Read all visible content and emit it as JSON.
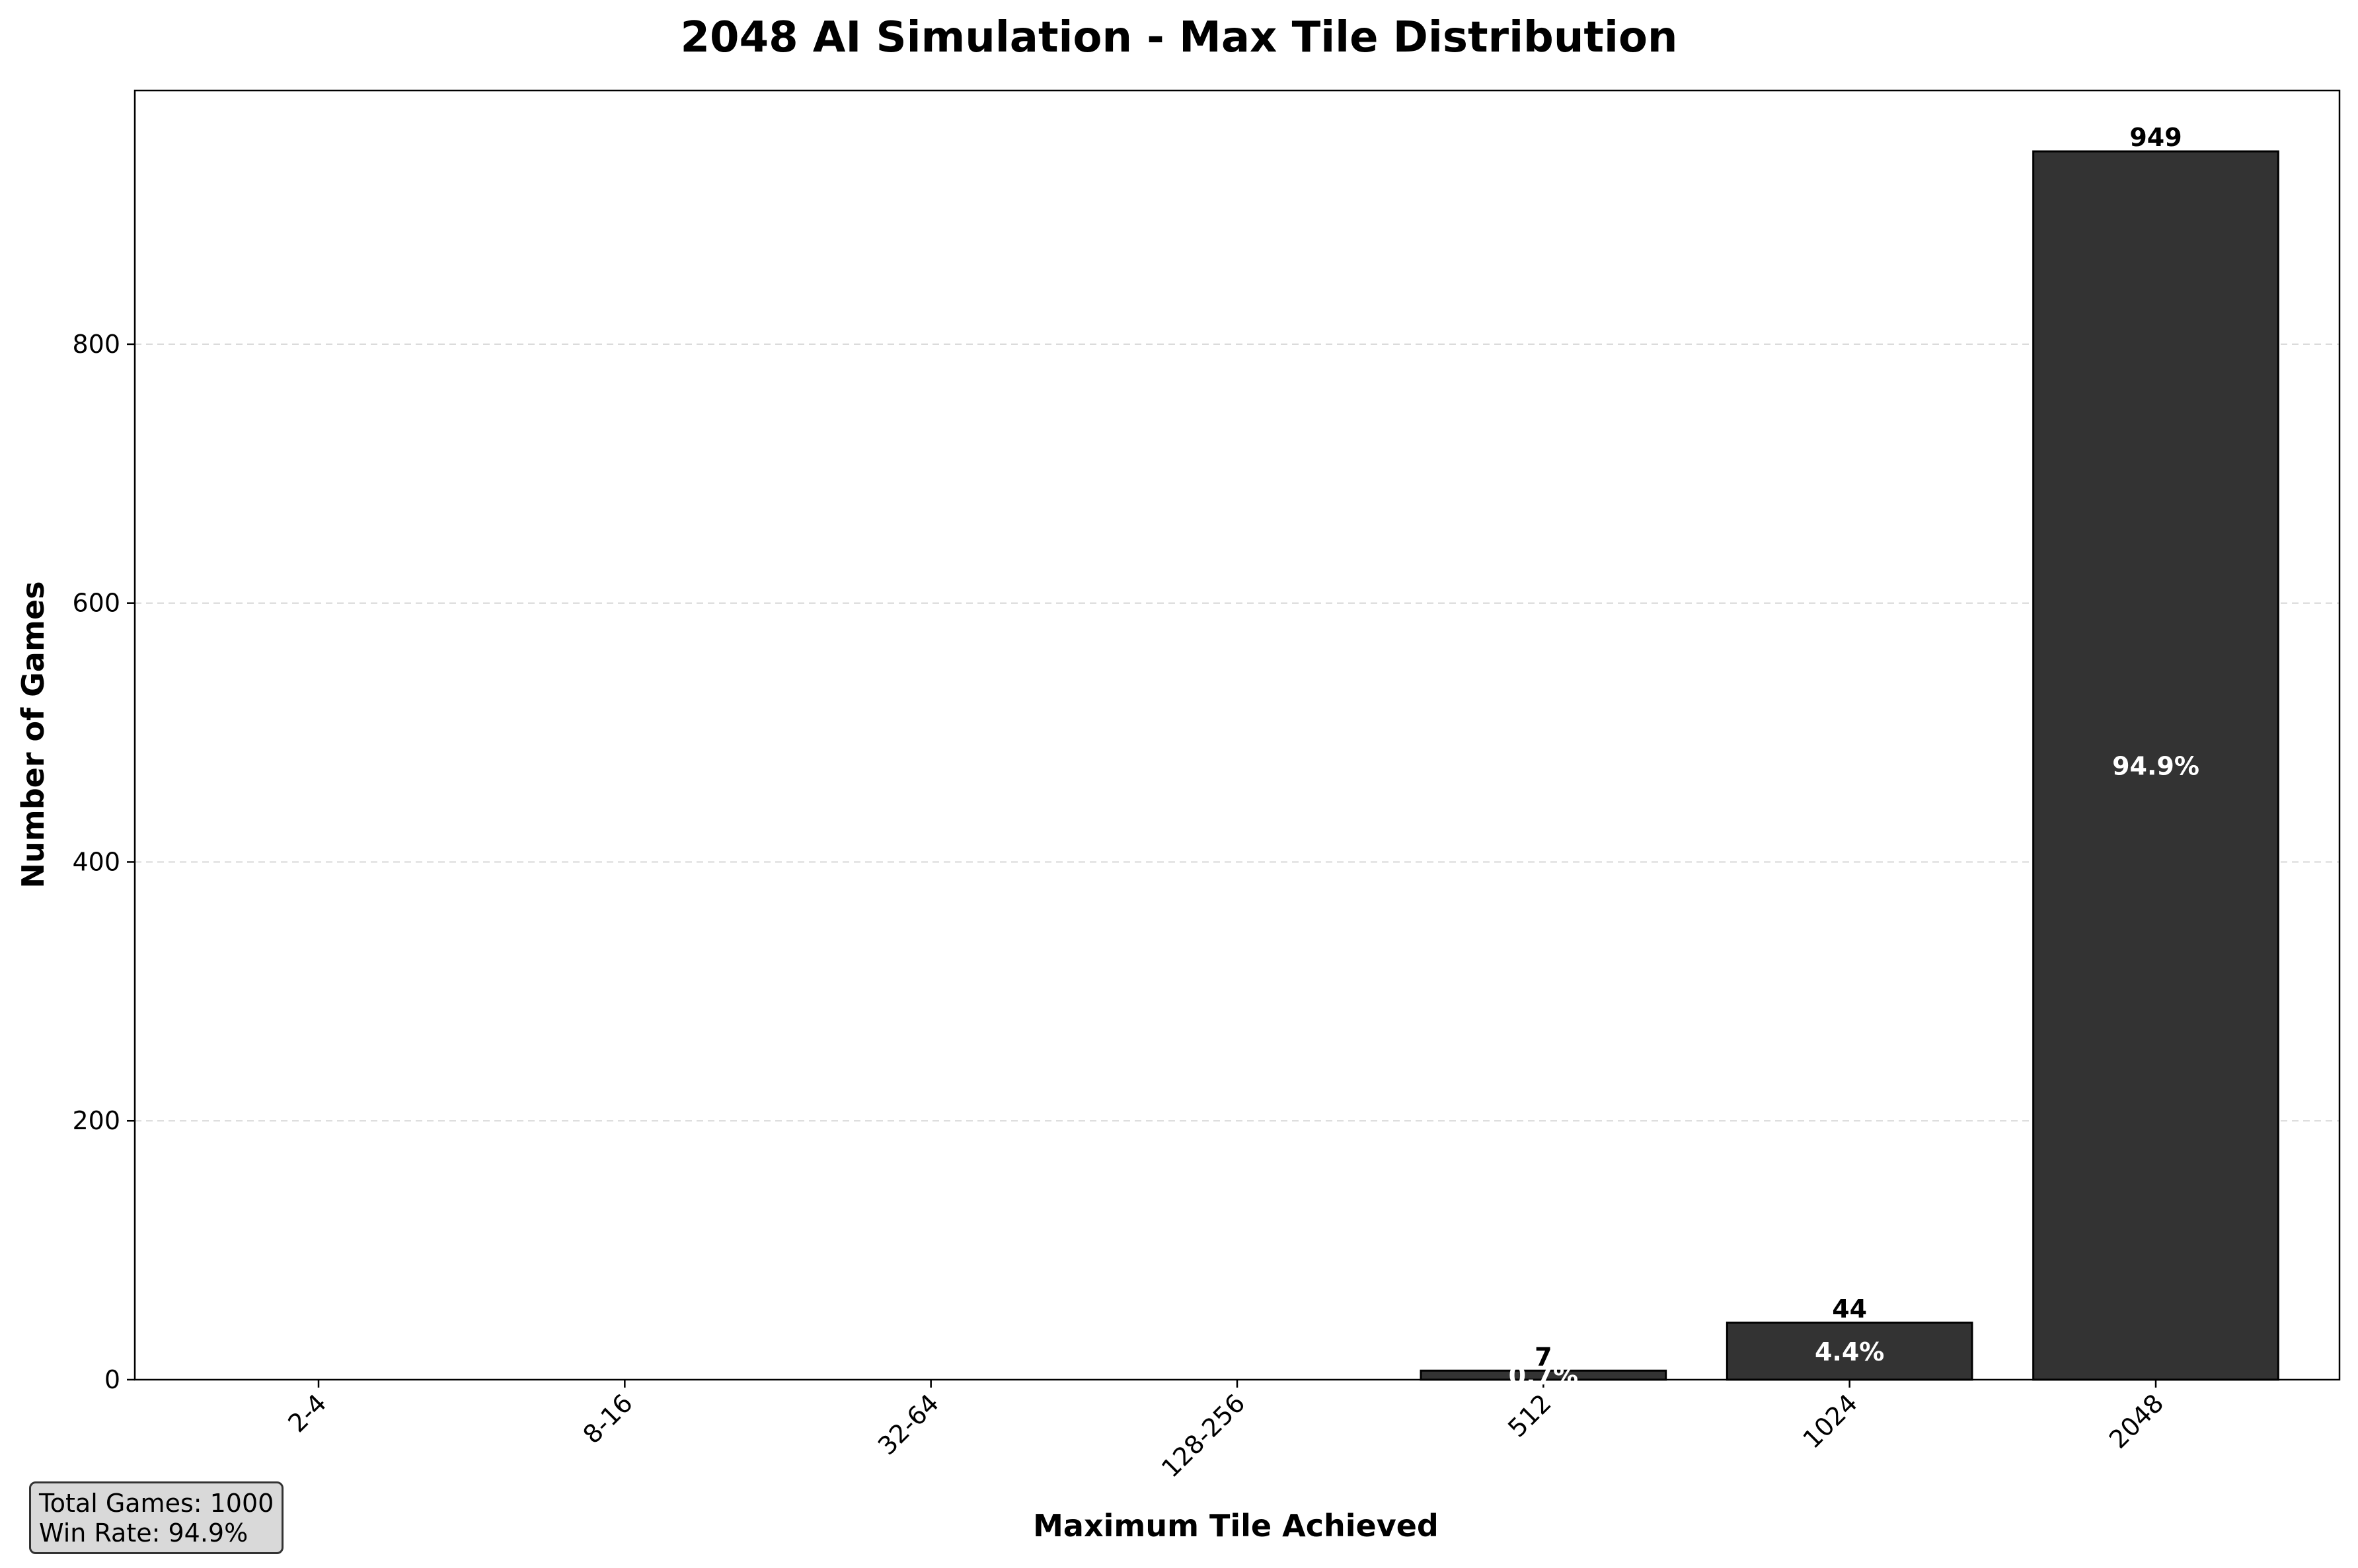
{
  "chart_data": {
    "type": "bar",
    "title": "2048 AI Simulation - Max Tile Distribution",
    "xlabel": "Maximum Tile Achieved",
    "ylabel": "Number of Games",
    "categories": [
      "2-4",
      "8-16",
      "32-64",
      "128-256",
      "512",
      "1024",
      "2048"
    ],
    "values": [
      0,
      0,
      0,
      0,
      7,
      44,
      949
    ],
    "value_labels": [
      "",
      "",
      "",
      "",
      "7",
      "44",
      "949"
    ],
    "percent_labels": [
      "",
      "",
      "",
      "",
      "0.7%",
      "4.4%",
      "94.9%"
    ],
    "yticks": [
      0,
      200,
      400,
      600,
      800
    ],
    "ylim": [
      0,
      996
    ],
    "bar_color": "#333333",
    "grid": "y-dashed",
    "x_tick_rotation": 45
  },
  "stats": {
    "total_games": "Total Games: 1000",
    "win_rate": "Win Rate: 94.9%"
  }
}
